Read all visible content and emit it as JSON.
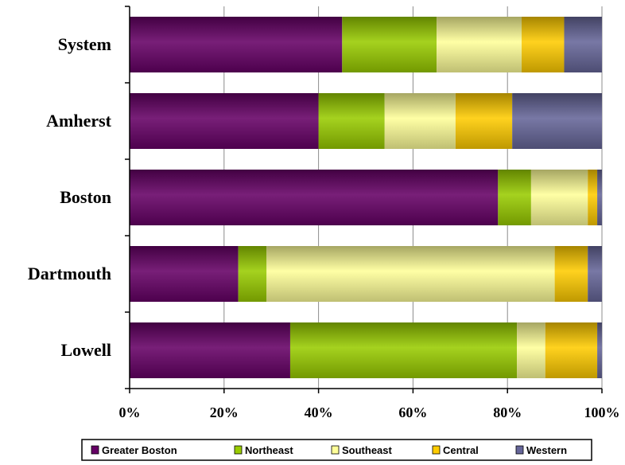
{
  "chart_data": {
    "type": "bar",
    "orientation": "horizontal",
    "stacked": true,
    "normalized": true,
    "categories": [
      "System",
      "Amherst",
      "Boston",
      "Dartmouth",
      "Lowell"
    ],
    "series": [
      {
        "name": "Greater Boston",
        "values": [
          45,
          40,
          78,
          23,
          34
        ],
        "color": "#660066"
      },
      {
        "name": "Northeast",
        "values": [
          20,
          14,
          7,
          6,
          48
        ],
        "color": "#99cc00"
      },
      {
        "name": "Southeast",
        "values": [
          18,
          15,
          12,
          61,
          6
        ],
        "color": "#ffff99"
      },
      {
        "name": "Central",
        "values": [
          9,
          12,
          2,
          7,
          11
        ],
        "color": "#ffcc00"
      },
      {
        "name": "Western",
        "values": [
          8,
          19,
          1,
          3,
          1
        ],
        "color": "#666699"
      }
    ],
    "xlim": [
      0,
      100
    ],
    "x_ticks": [
      "0%",
      "20%",
      "40%",
      "60%",
      "80%",
      "100%"
    ],
    "grid": "vertical",
    "legend_position": "bottom",
    "title": "",
    "xlabel": "",
    "ylabel": ""
  }
}
